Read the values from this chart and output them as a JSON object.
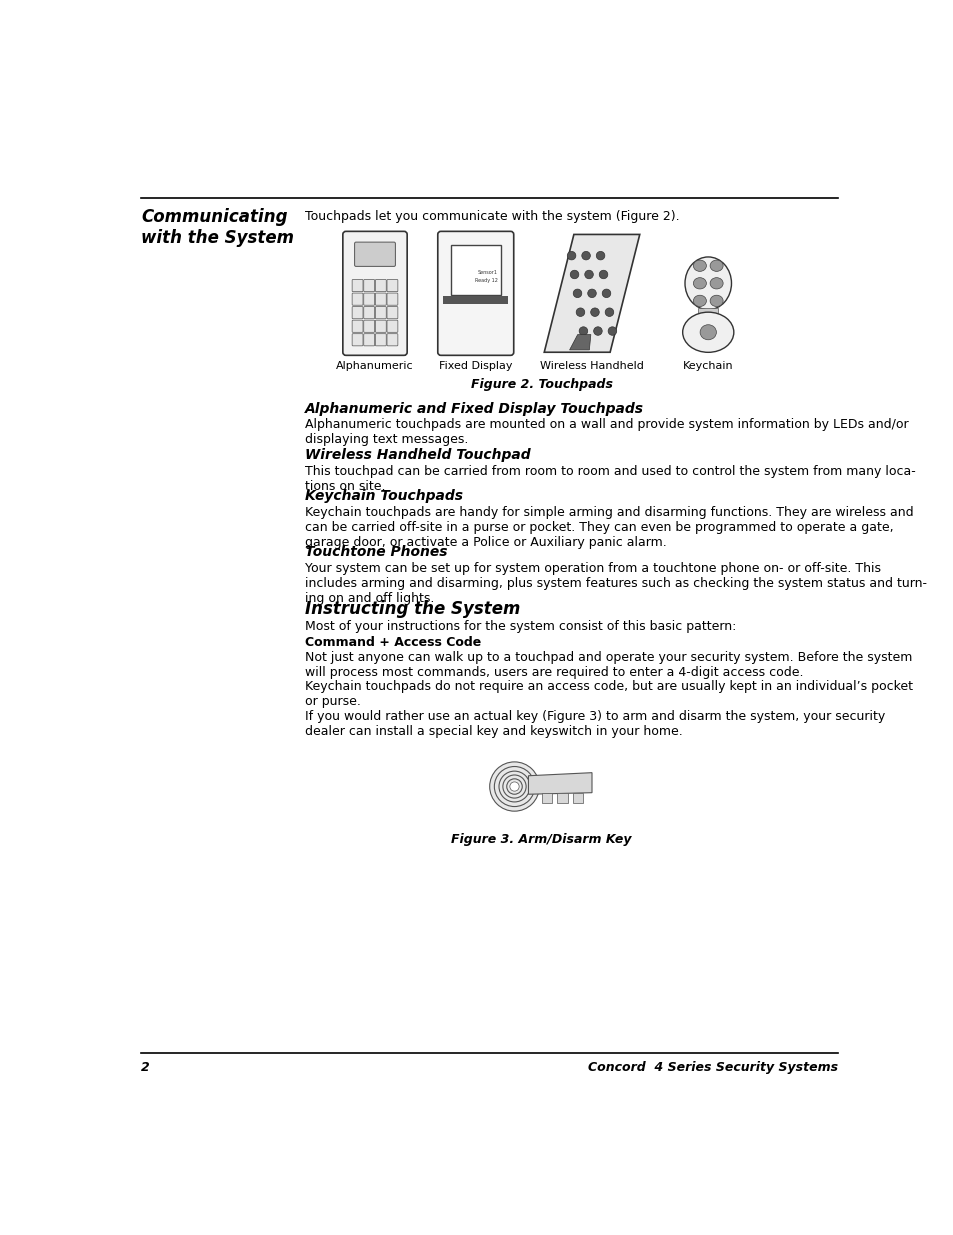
{
  "page_bg": "#ffffff",
  "page_number": "2",
  "footer_right": "Concord  4 Series Security Systems",
  "communicating_title": "Communicating\nwith the System",
  "intro_text": "Touchpads let you communicate with the system (Figure 2).",
  "figure2_caption": "Figure 2. Touchpads",
  "image_labels": [
    "Alphanumeric",
    "Fixed Display",
    "Wireless Handheld",
    "Keychain"
  ],
  "section1_title": "Alphanumeric and Fixed Display Touchpads",
  "section1_body": "Alphanumeric touchpads are mounted on a wall and provide system information by LEDs and/or\ndisplaying text messages.",
  "section2_title": "Wireless Handheld Touchpad",
  "section2_body": "This touchpad can be carried from room to room and used to control the system from many loca-\ntions on site.",
  "section3_title": "Keychain Touchpads",
  "section3_body": "Keychain touchpads are handy for simple arming and disarming functions. They are wireless and\ncan be carried off-site in a purse or pocket. They can even be programmed to operate a gate,\ngarage door, or activate a Police or Auxiliary panic alarm.",
  "section4_title": "Touchtone Phones",
  "section4_body": "Your system can be set up for system operation from a touchtone phone on- or off-site. This\nincludes arming and disarming, plus system features such as checking the system status and turn-\ning on and off lights.",
  "section5_title": "Instructing the System",
  "section5_intro": "Most of your instructions for the system consist of this basic pattern:",
  "section5_bold": "Command + Access Code",
  "section5_body1": "Not just anyone can walk up to a touchpad and operate your security system. Before the system\nwill process most commands, users are required to enter a 4-digit access code.",
  "section5_body2": "Keychain touchpads do not require an access code, but are usually kept in an individual’s pocket\nor purse.",
  "section5_body3": "If you would rather use an actual key (Figure 3) to arm and disarm the system, your security\ndealer can install a special key and keyswitch in your home.",
  "figure3_caption": "Figure 3. Arm/Disarm Key"
}
